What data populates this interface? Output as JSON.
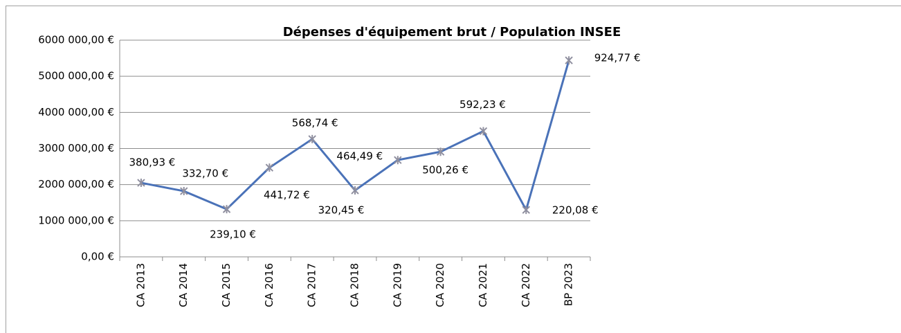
{
  "chart_data": {
    "type": "line",
    "title": "Dépenses d'équipement brut / Population INSEE",
    "categories": [
      "CA 2013",
      "CA 2014",
      "CA 2015",
      "CA 2016",
      "CA 2017",
      "CA 2018",
      "CA 2019",
      "CA 2020",
      "CA 2021",
      "CA 2022",
      "BP 2023"
    ],
    "series": [
      {
        "color": "#4a72b8",
        "values": [
          2050000,
          1820000,
          1320000,
          2470000,
          3260000,
          1840000,
          2680000,
          2910000,
          3480000,
          1300000,
          5440000
        ]
      }
    ],
    "data_labels": [
      "380,93 €",
      "332,70 €",
      "239,10 €",
      "441,72 €",
      "568,74 €",
      "320,45 €",
      "464,49 €",
      "500,26 €",
      "592,23 €",
      "220,08 €",
      "924,77 €"
    ],
    "ylim": [
      0,
      6000000
    ],
    "yticks": [
      {
        "value": 0,
        "label": "0,00 €"
      },
      {
        "value": 1000000,
        "label": "1000 000,00 €"
      },
      {
        "value": 2000000,
        "label": "2000 000,00 €"
      },
      {
        "value": 3000000,
        "label": "3000 000,00 €"
      },
      {
        "value": 4000000,
        "label": "4000 000,00 €"
      },
      {
        "value": 5000000,
        "label": "5000 000,00 €"
      },
      {
        "value": 6000000,
        "label": "6000 000,00 €"
      }
    ],
    "grid": true
  }
}
